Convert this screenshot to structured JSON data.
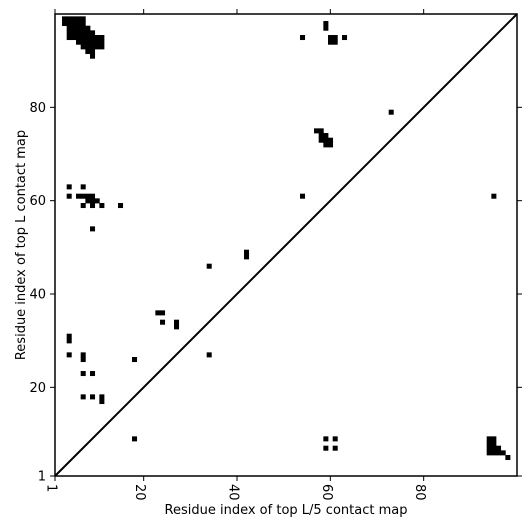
{
  "chart_data": {
    "type": "heatmap",
    "title": "",
    "xlabel": "Residue index of top L/5 contact map",
    "ylabel": "Residue index of top L contact map",
    "xlim": [
      1,
      100
    ],
    "ylim": [
      1,
      100
    ],
    "xticks": [
      1,
      20,
      40,
      60,
      80
    ],
    "yticks": [
      1,
      20,
      40,
      60,
      80
    ],
    "diagonal": true,
    "grid": false,
    "contacts_top_L": [
      [
        3,
        99
      ],
      [
        4,
        99
      ],
      [
        5,
        99
      ],
      [
        6,
        99
      ],
      [
        7,
        99
      ],
      [
        3,
        98
      ],
      [
        4,
        98
      ],
      [
        5,
        98
      ],
      [
        6,
        98
      ],
      [
        7,
        98
      ],
      [
        4,
        97
      ],
      [
        5,
        97
      ],
      [
        6,
        97
      ],
      [
        7,
        97
      ],
      [
        8,
        97
      ],
      [
        4,
        96
      ],
      [
        5,
        96
      ],
      [
        6,
        96
      ],
      [
        7,
        96
      ],
      [
        8,
        96
      ],
      [
        9,
        96
      ],
      [
        4,
        95
      ],
      [
        5,
        95
      ],
      [
        6,
        95
      ],
      [
        7,
        95
      ],
      [
        8,
        95
      ],
      [
        9,
        95
      ],
      [
        10,
        95
      ],
      [
        11,
        95
      ],
      [
        6,
        94
      ],
      [
        7,
        94
      ],
      [
        8,
        94
      ],
      [
        9,
        94
      ],
      [
        10,
        94
      ],
      [
        11,
        94
      ],
      [
        7,
        93
      ],
      [
        8,
        93
      ],
      [
        9,
        93
      ],
      [
        10,
        93
      ],
      [
        11,
        93
      ],
      [
        8,
        92
      ],
      [
        9,
        92
      ],
      [
        9,
        91
      ],
      [
        59,
        98
      ],
      [
        59,
        97
      ],
      [
        54,
        95
      ],
      [
        60,
        95
      ],
      [
        61,
        95
      ],
      [
        63,
        95
      ],
      [
        60,
        94
      ],
      [
        61,
        94
      ],
      [
        73,
        79
      ],
      [
        57,
        75
      ],
      [
        58,
        75
      ],
      [
        58,
        74
      ],
      [
        59,
        74
      ],
      [
        58,
        73
      ],
      [
        59,
        73
      ],
      [
        60,
        73
      ],
      [
        59,
        72
      ],
      [
        60,
        72
      ],
      [
        4,
        63
      ],
      [
        7,
        63
      ],
      [
        4,
        61
      ],
      [
        6,
        61
      ],
      [
        7,
        61
      ],
      [
        8,
        61
      ],
      [
        9,
        61
      ],
      [
        54,
        61
      ],
      [
        95,
        61
      ],
      [
        8,
        60
      ],
      [
        9,
        60
      ],
      [
        10,
        60
      ],
      [
        7,
        59
      ],
      [
        9,
        59
      ],
      [
        11,
        59
      ],
      [
        15,
        59
      ],
      [
        9,
        54
      ],
      [
        42,
        49
      ],
      [
        42,
        48
      ],
      [
        34,
        46
      ],
      [
        23,
        36
      ],
      [
        24,
        36
      ],
      [
        24,
        34
      ],
      [
        27,
        34
      ],
      [
        27,
        33
      ],
      [
        4,
        31
      ],
      [
        4,
        30
      ],
      [
        4,
        27
      ],
      [
        7,
        27
      ],
      [
        34,
        27
      ],
      [
        7,
        26
      ],
      [
        18,
        26
      ],
      [
        7,
        23
      ],
      [
        9,
        23
      ],
      [
        7,
        18
      ],
      [
        9,
        18
      ],
      [
        11,
        18
      ],
      [
        11,
        17
      ],
      [
        18,
        9
      ],
      [
        59,
        9
      ],
      [
        61,
        9
      ],
      [
        59,
        7
      ],
      [
        61,
        7
      ],
      [
        94,
        9
      ],
      [
        95,
        9
      ],
      [
        94,
        8
      ],
      [
        95,
        8
      ],
      [
        94,
        7
      ],
      [
        95,
        7
      ],
      [
        96,
        7
      ],
      [
        94,
        6
      ],
      [
        95,
        6
      ],
      [
        96,
        6
      ],
      [
        97,
        6
      ],
      [
        98,
        5
      ]
    ]
  }
}
